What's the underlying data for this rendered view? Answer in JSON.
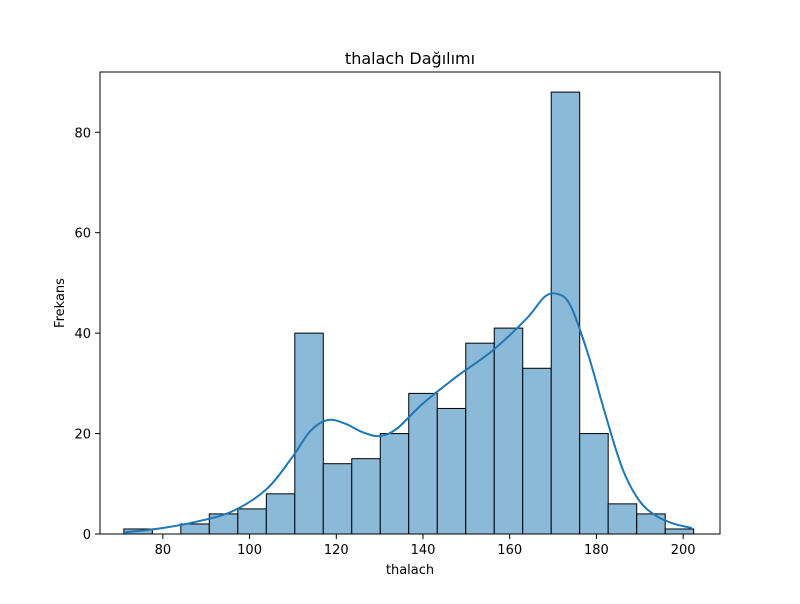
{
  "chart_data": {
    "type": "bar",
    "title": "thalach Dağılımı",
    "xlabel": "thalach",
    "ylabel": "Frekans",
    "xlim": [
      65.5,
      208.5
    ],
    "ylim": [
      0,
      92
    ],
    "x_ticks": [
      80,
      100,
      120,
      140,
      160,
      180,
      200
    ],
    "y_ticks": [
      0,
      20,
      40,
      60,
      80
    ],
    "grid": false,
    "legend": "none",
    "bin_edges": [
      71,
      77.57,
      84.14,
      90.71,
      97.29,
      103.86,
      110.43,
      117,
      123.57,
      130.14,
      136.71,
      143.29,
      149.86,
      156.43,
      163,
      169.57,
      176.14,
      182.71,
      189.29,
      195.86,
      202.43
    ],
    "values": [
      1,
      0,
      2,
      4,
      5,
      8,
      40,
      14,
      15,
      20,
      28,
      25,
      38,
      41,
      33,
      88,
      20,
      6,
      4,
      1
    ],
    "kde": {
      "x": [
        71,
        80,
        88,
        96,
        104,
        110,
        114,
        118,
        122,
        126,
        130,
        134,
        140,
        148,
        156,
        164,
        168,
        171,
        174,
        178,
        182,
        186,
        190,
        194,
        198,
        202
      ],
      "y": [
        0.3,
        1.2,
        2.5,
        4.5,
        9,
        15.5,
        20.5,
        22.7,
        22,
        20.3,
        19.5,
        21,
        26,
        31.5,
        36.5,
        43,
        47.2,
        47.8,
        45.5,
        36,
        24,
        13,
        6.5,
        3.5,
        2,
        1.2
      ]
    },
    "colors": {
      "bar_fill": "#8bbad9",
      "bar_edge": "#000000",
      "kde_line": "#1f77b4"
    }
  }
}
